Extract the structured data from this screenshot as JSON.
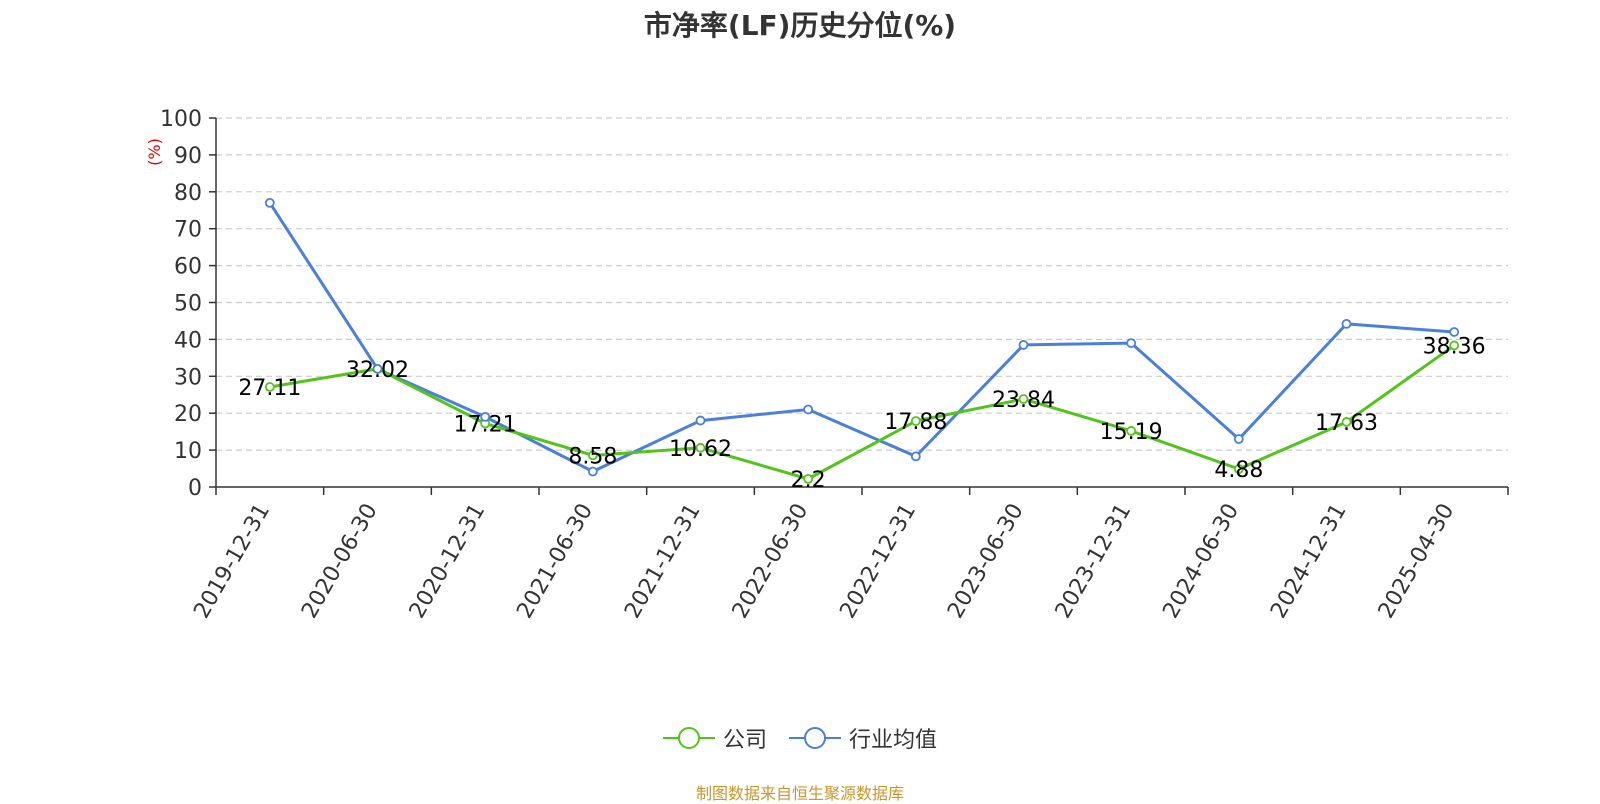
{
  "chart_data": {
    "type": "line",
    "title": "市净率(LF)历史分位(%)",
    "ylabel": "(%)",
    "xlabel": "",
    "ylim": [
      0,
      100
    ],
    "yticks": [
      0,
      10,
      20,
      30,
      40,
      50,
      60,
      70,
      80,
      90,
      100
    ],
    "grid": true,
    "legend_position": "bottom",
    "categories": [
      "2019-12-31",
      "2020-06-30",
      "2020-12-31",
      "2021-06-30",
      "2021-12-31",
      "2022-06-30",
      "2022-12-31",
      "2023-06-30",
      "2023-12-31",
      "2024-06-30",
      "2024-12-31",
      "2025-04-30"
    ],
    "series": [
      {
        "name": "公司",
        "color": "#52c41a",
        "values": [
          27.11,
          32.02,
          17.21,
          8.58,
          10.62,
          2.2,
          17.88,
          23.84,
          15.19,
          4.88,
          17.63,
          38.36
        ],
        "labels": [
          "27.11",
          "32.02",
          "17.21",
          "8.58",
          "10.62",
          "2.2",
          "17.88",
          "23.84",
          "15.19",
          "4.88",
          "17.63",
          "38.36"
        ]
      },
      {
        "name": "行业均值",
        "color": "#4a7fdb",
        "values": [
          77,
          32,
          19,
          4.2,
          18,
          21,
          8.3,
          38.5,
          39,
          13,
          44.2,
          42
        ]
      }
    ],
    "source": "制图数据来自恒生聚源数据库"
  }
}
